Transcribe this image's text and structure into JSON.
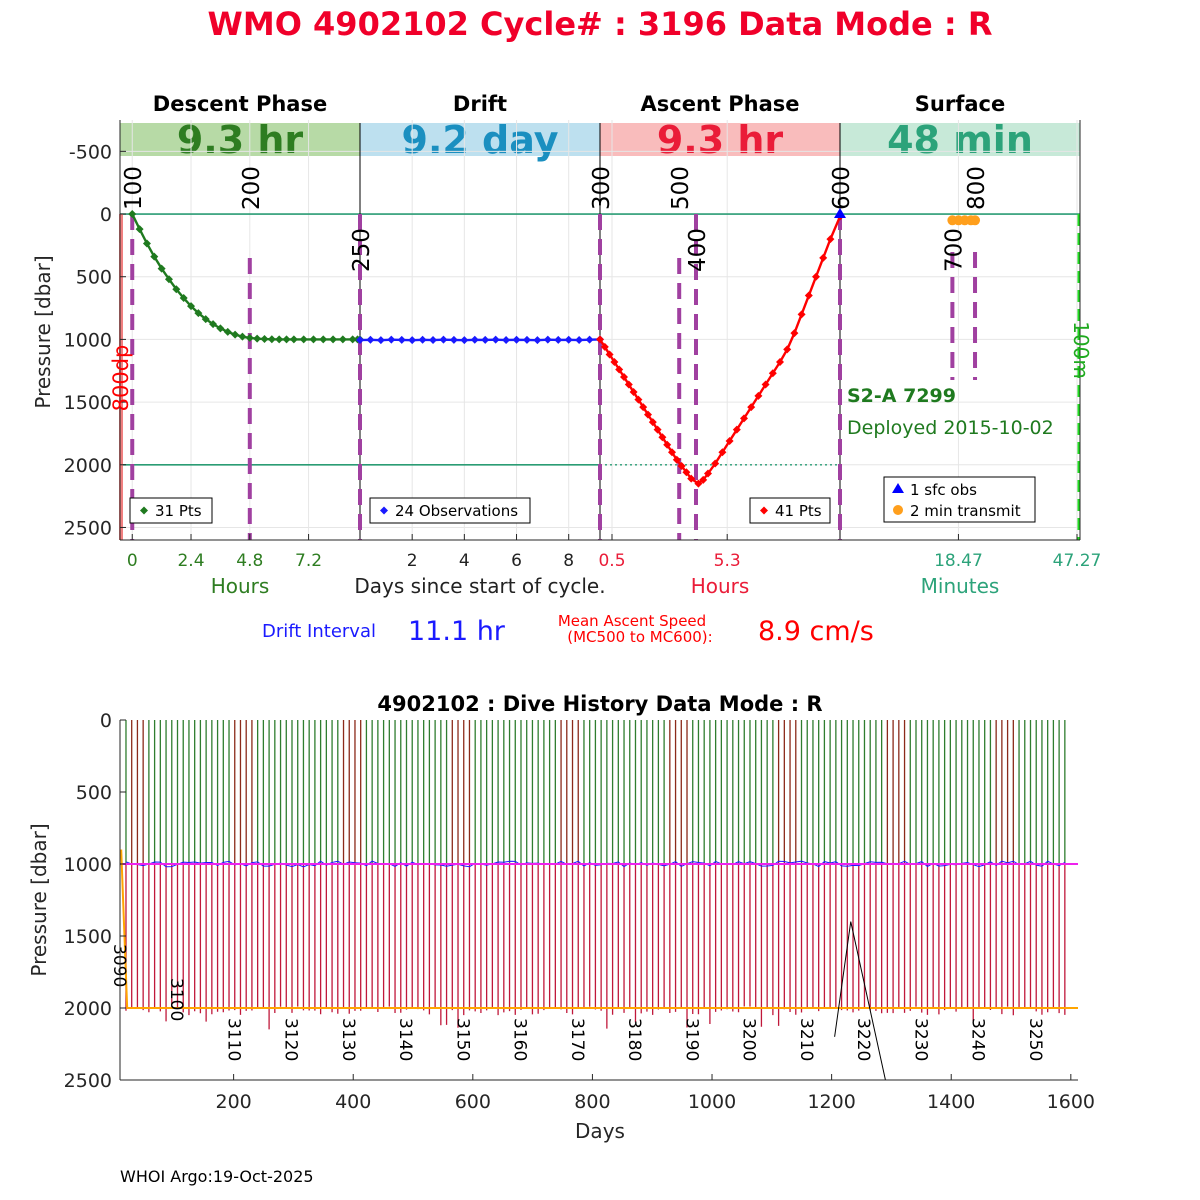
{
  "header": {
    "title": "WMO 4902102   Cycle# : 3196   Data Mode : R",
    "title_color": "#f0002a"
  },
  "phases": [
    {
      "name": "Descent Phase",
      "duration": "9.3 hr",
      "band_color": "#b7daa6",
      "text_color": "#2e7d21"
    },
    {
      "name": "Drift",
      "duration": "9.2 day",
      "band_color": "#bde0ef",
      "text_color": "#1a8fc0"
    },
    {
      "name": "Ascent Phase",
      "duration": "9.3 hr",
      "band_color": "#f9bcbc",
      "text_color": "#ea1c38"
    },
    {
      "name": "Surface",
      "duration": "48 min",
      "band_color": "#c7e9d8",
      "text_color": "#2ca37a"
    }
  ],
  "top_chart": {
    "ylabel": "Pressure [dbar]",
    "y_ticks": [
      "-500",
      "0",
      "500",
      "1000",
      "1500",
      "2000",
      "2500"
    ],
    "y_tick_values": [
      -500,
      0,
      500,
      1000,
      1500,
      2000,
      2500
    ],
    "ylim": [
      -750,
      2600
    ],
    "park_pressure": 1000,
    "profile_pressure": 2000,
    "panel_x_ticks": [
      {
        "labels": [
          "0",
          "2.4",
          "4.8",
          "7.2"
        ],
        "values": [
          0,
          2.4,
          4.8,
          7.2
        ],
        "range": [
          -0.5,
          9.3
        ],
        "color": "#2e7d21",
        "unit": "Hours"
      },
      {
        "labels": [
          "2",
          "4",
          "6",
          "8"
        ],
        "values": [
          2,
          4,
          6,
          8
        ],
        "range": [
          0,
          9.2
        ],
        "color": "#222222",
        "unit": "Days since start of cycle."
      },
      {
        "labels": [
          "0.5",
          "5.3"
        ],
        "values": [
          0.5,
          5.3
        ],
        "range": [
          0,
          10
        ],
        "color": "#ea1c38",
        "unit": "Hours"
      },
      {
        "labels": [
          "18.47",
          "47.27"
        ],
        "values": [
          18.47,
          47.27
        ],
        "range": [
          -10.3,
          48.0
        ],
        "color": "#2ca37a",
        "unit": "Minutes"
      }
    ],
    "mc_labels": [
      {
        "text": "100",
        "panel": 0,
        "at": 0,
        "row": "top",
        "color": "#000000"
      },
      {
        "text": "200",
        "panel": 0,
        "at": 4.8,
        "row": "top",
        "color": "#000000"
      },
      {
        "text": "250",
        "panel": 1,
        "at": 0,
        "row": "mid",
        "color": "#000000"
      },
      {
        "text": "300",
        "panel": 2,
        "at": 0,
        "row": "top",
        "color": "#000000"
      },
      {
        "text": "500",
        "panel": 2,
        "at": 3.3,
        "row": "top",
        "color": "#000000"
      },
      {
        "text": "400",
        "panel": 2,
        "at": 4.0,
        "row": "mid",
        "color": "#000000"
      },
      {
        "text": "600",
        "panel": 3,
        "at": -10.3,
        "row": "top",
        "color": "#000000"
      },
      {
        "text": "700",
        "panel": 3,
        "at": 17.0,
        "row": "mid",
        "color": "#000000"
      },
      {
        "text": "800",
        "panel": 3,
        "at": 22.5,
        "row": "top",
        "color": "#000000"
      }
    ],
    "legends": [
      {
        "marker": "diamond",
        "color": "#1f7a1f",
        "text": "31 Pts"
      },
      {
        "marker": "diamond",
        "color": "#1a1aff",
        "text": "24 Observations"
      },
      {
        "marker": "diamond",
        "color": "#ff0000",
        "text": "41 Pts"
      }
    ],
    "surface_legend": [
      {
        "marker": "triangle",
        "color": "#0000ff",
        "text": "1 sfc obs"
      },
      {
        "marker": "circle",
        "color": "#ff9f1c",
        "text": "2 min transmit"
      }
    ],
    "float_info": {
      "model": "S2-A 7299",
      "deployed": "Deployed 2015-10-02",
      "color": "#1f7a1f"
    },
    "left_side_label": "800dp",
    "right_side_label": "100m"
  },
  "chart_data": [
    {
      "type": "line",
      "title": "WMO 4902102   Cycle# : 3196   Data Mode : R",
      "ylabel": "Pressure [dbar]",
      "ylim": [
        -750,
        2600
      ],
      "series": [
        {
          "name": "Descent Phase",
          "unit": "Hours",
          "color": "#1f7a1f",
          "x": [
            0,
            0.3,
            0.6,
            0.9,
            1.2,
            1.5,
            1.8,
            2.1,
            2.4,
            2.7,
            3.0,
            3.3,
            3.6,
            3.9,
            4.2,
            4.5,
            4.8,
            5.1,
            5.4,
            5.7,
            6.0,
            6.3,
            6.6,
            7.0,
            7.4,
            7.8,
            8.2,
            8.6,
            9.0,
            9.2,
            9.3
          ],
          "values": [
            0,
            120,
            235,
            340,
            435,
            520,
            600,
            670,
            735,
            790,
            838,
            878,
            912,
            940,
            962,
            978,
            988,
            994,
            997,
            999,
            1000,
            1000,
            1000,
            1000,
            1000,
            1000,
            1000,
            1000,
            1000,
            1000,
            1000
          ]
        },
        {
          "name": "Drift",
          "unit": "Days",
          "color": "#1a1aff",
          "x": [
            0,
            0.4,
            0.8,
            1.2,
            1.6,
            2.0,
            2.4,
            2.8,
            3.2,
            3.6,
            4.0,
            4.4,
            4.8,
            5.2,
            5.6,
            6.0,
            6.4,
            6.8,
            7.2,
            7.6,
            8.0,
            8.4,
            8.8,
            9.2
          ],
          "values": [
            1005,
            1003,
            1006,
            1002,
            1004,
            1006,
            1003,
            1005,
            1002,
            1004,
            1006,
            1003,
            1004,
            1002,
            1005,
            1003,
            1004,
            1006,
            1002,
            1004,
            1003,
            1005,
            1002,
            1000
          ]
        },
        {
          "name": "Ascent Phase",
          "unit": "Hours",
          "color": "#ff0000",
          "x": [
            0,
            0.2,
            0.4,
            0.6,
            0.8,
            1.0,
            1.2,
            1.4,
            1.6,
            1.8,
            2.0,
            2.2,
            2.4,
            2.6,
            2.8,
            3.0,
            3.2,
            3.4,
            3.6,
            3.8,
            4.1,
            4.3,
            4.5,
            4.8,
            5.1,
            5.4,
            5.7,
            6.0,
            6.3,
            6.6,
            6.9,
            7.2,
            7.5,
            7.8,
            8.1,
            8.4,
            8.7,
            9.0,
            9.3,
            9.6,
            10.0
          ],
          "values": [
            1000,
            1060,
            1120,
            1180,
            1240,
            1300,
            1360,
            1420,
            1480,
            1540,
            1600,
            1660,
            1720,
            1780,
            1840,
            1900,
            1960,
            2010,
            2060,
            2110,
            2150,
            2120,
            2070,
            1990,
            1900,
            1810,
            1720,
            1630,
            1540,
            1450,
            1360,
            1270,
            1180,
            1080,
            950,
            800,
            650,
            500,
            350,
            200,
            20
          ]
        },
        {
          "name": "1 sfc obs",
          "unit": "Minutes",
          "color": "#0000ff",
          "x": [
            -10.3
          ],
          "values": [
            0
          ]
        },
        {
          "name": "2 min transmit",
          "unit": "Minutes",
          "color": "#ff9f1c",
          "x": [
            17.0,
            18.5,
            20.0,
            21.5,
            22.5
          ],
          "values": [
            50,
            50,
            50,
            50,
            50
          ]
        }
      ]
    },
    {
      "type": "bar",
      "title": "4902102 : Dive History      Data Mode : R",
      "xlabel": "Days",
      "ylabel": "Pressure [dbar]",
      "xlim": [
        10,
        1612
      ],
      "ylim": [
        0,
        2500
      ],
      "x_ticks": [
        200,
        400,
        600,
        800,
        1000,
        1200,
        1400,
        1600
      ],
      "y_ticks": [
        0,
        500,
        1000,
        1500,
        2000,
        2500
      ],
      "cycle_start": 3090,
      "cycle_count": 165,
      "park_pressure": 1000,
      "profile_pressure": 2000
    }
  ],
  "bottom_chart": {
    "title": "4902102 : Dive History      Data Mode : R",
    "xlabel": "Days",
    "ylabel": "Pressure [dbar]",
    "x_ticks": [
      "200",
      "400",
      "600",
      "800",
      "1000",
      "1200",
      "1400",
      "1600"
    ],
    "y_ticks": [
      "0",
      "500",
      "1000",
      "1500",
      "2000",
      "2500"
    ],
    "cycle_labels": [
      "3090",
      "3100",
      "3110",
      "3120",
      "3130",
      "3140",
      "3150",
      "3160",
      "3170",
      "3180",
      "3190",
      "3200",
      "3210",
      "3220",
      "3230",
      "3240",
      "3250"
    ]
  },
  "drift_interval": {
    "label": "Drift Interval",
    "value": "11.1 hr",
    "color": "#1a1aff"
  },
  "ascent_speed": {
    "label_line1": "Mean Ascent Speed",
    "label_line2": "(MC500 to MC600):",
    "value": "8.9 cm/s",
    "color": "#ff0000"
  },
  "footer": {
    "credit": "WHOI Argo:19-Oct-2025"
  }
}
